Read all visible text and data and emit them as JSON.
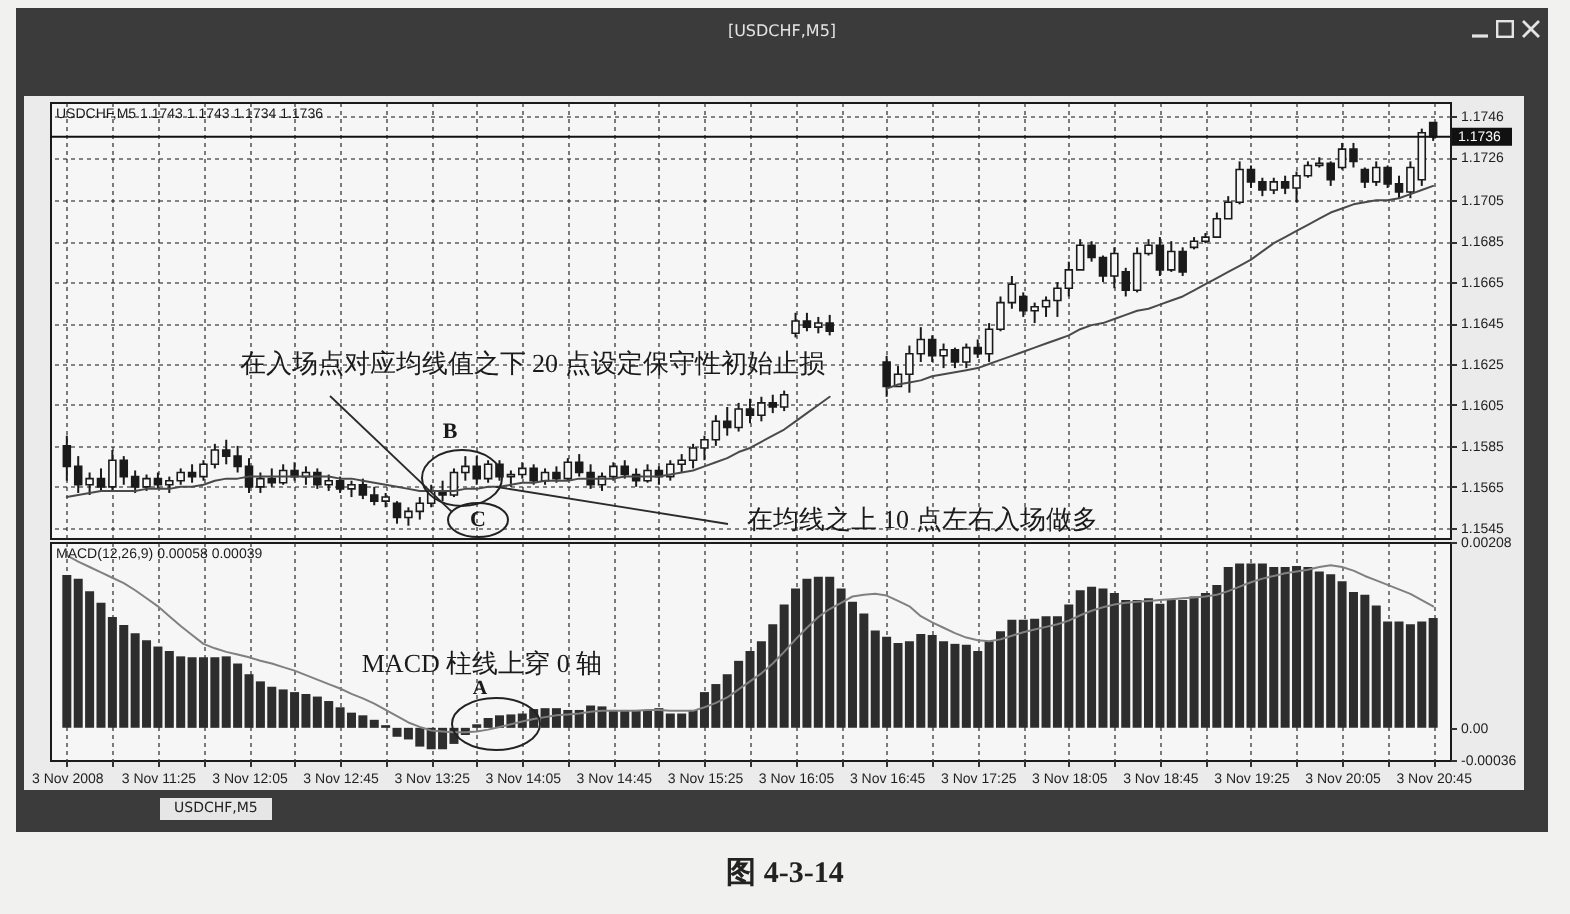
{
  "chart_data": [
    {
      "type": "candlestick",
      "title": "[USDCHF,M5]",
      "subtitle": "USDCHF,M5  1.1743 1.1743 1.1734 1.1736",
      "color": "#1a1a1a",
      "x": [
        "2008-11-03T10:45",
        "2008-11-03T10:50",
        "2008-11-03T10:55",
        "2008-11-03T11:00",
        "2008-11-03T11:05",
        "2008-11-03T11:10",
        "2008-11-03T11:15",
        "2008-11-03T11:20",
        "2008-11-03T11:25",
        "2008-11-03T11:30",
        "2008-11-03T11:35",
        "2008-11-03T11:40",
        "2008-11-03T11:45",
        "2008-11-03T11:50",
        "2008-11-03T11:55",
        "2008-11-03T12:00",
        "2008-11-03T12:05",
        "2008-11-03T12:10",
        "2008-11-03T12:15",
        "2008-11-03T12:20",
        "2008-11-03T12:25",
        "2008-11-03T12:30",
        "2008-11-03T12:35",
        "2008-11-03T12:40",
        "2008-11-03T12:45",
        "2008-11-03T12:50",
        "2008-11-03T12:55",
        "2008-11-03T13:00",
        "2008-11-03T13:05",
        "2008-11-03T13:10",
        "2008-11-03T13:15",
        "2008-11-03T13:20",
        "2008-11-03T13:25",
        "2008-11-03T13:30",
        "2008-11-03T13:35",
        "2008-11-03T13:40",
        "2008-11-03T13:45",
        "2008-11-03T13:50",
        "2008-11-03T13:55",
        "2008-11-03T14:00",
        "2008-11-03T14:05",
        "2008-11-03T14:10",
        "2008-11-03T14:15",
        "2008-11-03T14:20",
        "2008-11-03T14:25",
        "2008-11-03T14:30",
        "2008-11-03T14:35",
        "2008-11-03T14:40",
        "2008-11-03T14:45",
        "2008-11-03T14:50",
        "2008-11-03T14:55",
        "2008-11-03T15:00",
        "2008-11-03T15:05",
        "2008-11-03T15:10",
        "2008-11-03T15:15",
        "2008-11-03T15:20",
        "2008-11-03T15:25",
        "2008-11-03T15:30",
        "2008-11-03T15:35",
        "2008-11-03T15:40",
        "2008-11-03T15:45",
        "2008-11-03T15:50",
        "2008-11-03T15:55",
        "2008-11-03T16:00",
        "2008-11-03T16:05",
        "2008-11-03T16:10",
        "2008-11-03T16:15",
        "2008-11-03T16:20",
        "2008-11-03T16:25",
        "2008-11-03T16:30",
        "2008-11-03T16:35",
        "2008-11-03T16:40",
        "2008-11-03T16:45",
        "2008-11-03T16:50",
        "2008-11-03T16:55",
        "2008-11-03T17:00",
        "2008-11-03T17:05",
        "2008-11-03T17:10",
        "2008-11-03T17:15",
        "2008-11-03T17:20",
        "2008-11-03T17:25",
        "2008-11-03T17:30",
        "2008-11-03T17:35",
        "2008-11-03T17:40",
        "2008-11-03T17:45",
        "2008-11-03T17:50",
        "2008-11-03T17:55",
        "2008-11-03T18:00",
        "2008-11-03T18:05",
        "2008-11-03T18:10",
        "2008-11-03T18:15",
        "2008-11-03T18:20",
        "2008-11-03T18:25",
        "2008-11-03T18:30",
        "2008-11-03T18:35",
        "2008-11-03T18:40",
        "2008-11-03T18:45",
        "2008-11-03T18:50",
        "2008-11-03T18:55",
        "2008-11-03T19:00",
        "2008-11-03T19:05",
        "2008-11-03T19:10",
        "2008-11-03T19:15",
        "2008-11-03T19:20",
        "2008-11-03T19:25",
        "2008-11-03T19:30",
        "2008-11-03T19:35",
        "2008-11-03T19:40",
        "2008-11-03T19:45",
        "2008-11-03T19:50",
        "2008-11-03T19:55",
        "2008-11-03T20:00",
        "2008-11-03T20:05",
        "2008-11-03T20:10",
        "2008-11-03T20:15",
        "2008-11-03T20:20",
        "2008-11-03T20:25",
        "2008-11-03T20:30",
        "2008-11-03T20:35",
        "2008-11-03T20:40",
        "2008-11-03T20:45"
      ],
      "ohlc": [
        [
          1.1585,
          1.159,
          1.1568,
          1.1575
        ],
        [
          1.1575,
          1.158,
          1.1562,
          1.1566
        ],
        [
          1.1566,
          1.1572,
          1.1561,
          1.1569
        ],
        [
          1.1569,
          1.1574,
          1.1563,
          1.1565
        ],
        [
          1.1565,
          1.1583,
          1.1563,
          1.1578
        ],
        [
          1.1578,
          1.158,
          1.1566,
          1.157
        ],
        [
          1.157,
          1.1573,
          1.1562,
          1.1565
        ],
        [
          1.1565,
          1.1571,
          1.1563,
          1.1569
        ],
        [
          1.1569,
          1.1572,
          1.1564,
          1.1566
        ],
        [
          1.1566,
          1.157,
          1.1562,
          1.1568
        ],
        [
          1.1568,
          1.1574,
          1.1566,
          1.1572
        ],
        [
          1.1572,
          1.1576,
          1.1567,
          1.157
        ],
        [
          1.157,
          1.1578,
          1.1568,
          1.1576
        ],
        [
          1.1576,
          1.1586,
          1.1574,
          1.1583
        ],
        [
          1.1583,
          1.1588,
          1.1576,
          1.158
        ],
        [
          1.158,
          1.1585,
          1.1572,
          1.1575
        ],
        [
          1.1575,
          1.1579,
          1.1562,
          1.1565
        ],
        [
          1.1565,
          1.1572,
          1.1562,
          1.1569
        ],
        [
          1.1569,
          1.1574,
          1.1565,
          1.1567
        ],
        [
          1.1567,
          1.1576,
          1.1566,
          1.1573
        ],
        [
          1.1573,
          1.1577,
          1.1568,
          1.157
        ],
        [
          1.157,
          1.1575,
          1.1566,
          1.1572
        ],
        [
          1.1572,
          1.1574,
          1.1564,
          1.1566
        ],
        [
          1.1566,
          1.1571,
          1.1563,
          1.1568
        ],
        [
          1.1568,
          1.157,
          1.1562,
          1.1564
        ],
        [
          1.1564,
          1.1568,
          1.156,
          1.1566
        ],
        [
          1.1566,
          1.1569,
          1.1559,
          1.1561
        ],
        [
          1.1561,
          1.1565,
          1.1556,
          1.1558
        ],
        [
          1.1558,
          1.1562,
          1.1555,
          1.156
        ],
        [
          1.1557,
          1.1558,
          1.1547,
          1.155
        ],
        [
          1.155,
          1.1555,
          1.1546,
          1.1553
        ],
        [
          1.1553,
          1.156,
          1.1549,
          1.1557
        ],
        [
          1.1557,
          1.1566,
          1.1555,
          1.1563
        ],
        [
          1.1563,
          1.1568,
          1.1558,
          1.1561
        ],
        [
          1.1561,
          1.1574,
          1.156,
          1.1572
        ],
        [
          1.1572,
          1.158,
          1.1568,
          1.1575
        ],
        [
          1.1575,
          1.158,
          1.1566,
          1.1569
        ],
        [
          1.1569,
          1.1578,
          1.1567,
          1.1576
        ],
        [
          1.1576,
          1.1578,
          1.1568,
          1.157
        ],
        [
          1.157,
          1.1573,
          1.1565,
          1.1571
        ],
        [
          1.1571,
          1.1577,
          1.1569,
          1.1574
        ],
        [
          1.1574,
          1.1576,
          1.1566,
          1.1568
        ],
        [
          1.1568,
          1.1574,
          1.1566,
          1.1572
        ],
        [
          1.1572,
          1.1575,
          1.1567,
          1.1569
        ],
        [
          1.1569,
          1.1579,
          1.1568,
          1.1577
        ],
        [
          1.1577,
          1.1581,
          1.157,
          1.1572
        ],
        [
          1.1572,
          1.1576,
          1.1564,
          1.1566
        ],
        [
          1.1566,
          1.1572,
          1.1563,
          1.157
        ],
        [
          1.157,
          1.1577,
          1.1568,
          1.1575
        ],
        [
          1.1575,
          1.1578,
          1.1569,
          1.1571
        ],
        [
          1.1571,
          1.1574,
          1.1565,
          1.1568
        ],
        [
          1.1568,
          1.1576,
          1.1567,
          1.1573
        ],
        [
          1.1573,
          1.1575,
          1.1566,
          1.157
        ],
        [
          1.157,
          1.1578,
          1.1568,
          1.1576
        ],
        [
          1.1576,
          1.1581,
          1.1572,
          1.1578
        ],
        [
          1.1578,
          1.1586,
          1.1574,
          1.1584
        ],
        [
          1.1584,
          1.159,
          1.1578,
          1.1588
        ],
        [
          1.1588,
          1.16,
          1.1585,
          1.1597
        ],
        [
          1.1597,
          1.1604,
          1.159,
          1.1594
        ],
        [
          1.1594,
          1.1606,
          1.1592,
          1.1603
        ],
        [
          1.1603,
          1.1608,
          1.1596,
          1.16
        ],
        [
          1.16,
          1.1609,
          1.1597,
          1.1606
        ],
        [
          1.1606,
          1.161,
          1.1601,
          1.1604
        ],
        [
          1.1604,
          1.1612,
          1.1602,
          1.161
        ],
        [
          1.164,
          1.165,
          1.1638,
          1.1646
        ],
        [
          1.1646,
          1.165,
          1.1641,
          1.1643
        ],
        [
          1.1643,
          1.1648,
          1.164,
          1.1645
        ],
        [
          1.1645,
          1.1649,
          1.1639,
          1.1641
        ],
        null,
        null,
        null,
        null,
        [
          1.1626,
          1.1629,
          1.1609,
          1.1614
        ],
        [
          1.1614,
          1.1624,
          1.1614,
          1.162
        ],
        [
          1.162,
          1.1634,
          1.1611,
          1.163
        ],
        [
          1.163,
          1.1643,
          1.1626,
          1.1637
        ],
        [
          1.1637,
          1.1639,
          1.1626,
          1.1629
        ],
        [
          1.1629,
          1.1635,
          1.1623,
          1.1632
        ],
        [
          1.1632,
          1.1633,
          1.1623,
          1.1626
        ],
        [
          1.1626,
          1.1635,
          1.1623,
          1.1633
        ],
        [
          1.1633,
          1.1637,
          1.1628,
          1.163
        ],
        [
          1.163,
          1.1645,
          1.1626,
          1.1642
        ],
        [
          1.1642,
          1.1658,
          1.1641,
          1.1655
        ],
        [
          1.1655,
          1.1668,
          1.1652,
          1.1664
        ],
        [
          1.1658,
          1.166,
          1.1648,
          1.1651
        ],
        [
          1.1651,
          1.1655,
          1.1645,
          1.1653
        ],
        [
          1.1653,
          1.1658,
          1.1648,
          1.1656
        ],
        [
          1.1656,
          1.1665,
          1.1648,
          1.1662
        ],
        [
          1.1662,
          1.1675,
          1.1658,
          1.1671
        ],
        [
          1.1671,
          1.1686,
          1.1671,
          1.1683
        ],
        [
          1.1683,
          1.1685,
          1.1675,
          1.1677
        ],
        [
          1.1677,
          1.1678,
          1.1665,
          1.1668
        ],
        [
          1.1668,
          1.1682,
          1.1662,
          1.1679
        ],
        [
          1.167,
          1.1672,
          1.1658,
          1.1661
        ],
        [
          1.1661,
          1.1682,
          1.166,
          1.1679
        ],
        [
          1.1679,
          1.1686,
          1.1678,
          1.1683
        ],
        [
          1.1683,
          1.1687,
          1.1668,
          1.1671
        ],
        [
          1.1671,
          1.1685,
          1.167,
          1.168
        ],
        [
          1.168,
          1.1682,
          1.1668,
          1.167
        ],
        [
          1.1682,
          1.1687,
          1.1681,
          1.1685
        ],
        [
          1.1685,
          1.1689,
          1.1684,
          1.1687
        ],
        [
          1.1687,
          1.1699,
          1.1687,
          1.1696
        ],
        [
          1.1696,
          1.1707,
          1.1696,
          1.1704
        ],
        [
          1.1704,
          1.1724,
          1.1703,
          1.172
        ],
        [
          1.172,
          1.1722,
          1.1711,
          1.1714
        ],
        [
          1.1714,
          1.1716,
          1.1707,
          1.171
        ],
        [
          1.171,
          1.1716,
          1.1708,
          1.1714
        ],
        [
          1.1714,
          1.1717,
          1.1708,
          1.1711
        ],
        [
          1.1711,
          1.1719,
          1.1704,
          1.1717
        ],
        [
          1.1717,
          1.1724,
          1.1716,
          1.1722
        ],
        [
          1.1722,
          1.1726,
          1.1721,
          1.1723
        ],
        [
          1.1723,
          1.1724,
          1.1712,
          1.1715
        ],
        [
          1.1721,
          1.1733,
          1.172,
          1.173
        ],
        [
          1.173,
          1.1733,
          1.1721,
          1.1724
        ],
        [
          1.172,
          1.1721,
          1.1711,
          1.1714
        ],
        [
          1.1714,
          1.1724,
          1.1712,
          1.1721
        ],
        [
          1.1721,
          1.1722,
          1.1711,
          1.1713
        ],
        [
          1.1713,
          1.1717,
          1.1706,
          1.1709
        ],
        [
          1.1709,
          1.1724,
          1.1706,
          1.1721
        ],
        [
          1.1715,
          1.174,
          1.1712,
          1.1738
        ],
        [
          1.1743,
          1.1743,
          1.1734,
          1.1736
        ]
      ],
      "series": [
        {
          "type": "line",
          "color": "#4a4a4a",
          "values": [
            1.156,
            1.1561,
            1.1562,
            1.1563,
            1.1563,
            1.1563,
            1.1563,
            1.1564,
            1.1564,
            1.1564,
            1.1565,
            1.1565,
            1.1566,
            1.1568,
            1.1569,
            1.1569,
            1.157,
            1.157,
            1.157,
            1.157,
            1.157,
            1.157,
            1.157,
            1.157,
            1.1569,
            1.1569,
            1.1568,
            1.1567,
            1.1566,
            1.1565,
            1.1564,
            1.1563,
            1.1563,
            1.1563,
            1.1563,
            1.1564,
            1.1564,
            1.1565,
            1.1565,
            1.1566,
            1.1567,
            1.1567,
            1.1568,
            1.1568,
            1.1568,
            1.1569,
            1.1569,
            1.1569,
            1.1569,
            1.157,
            1.157,
            1.157,
            1.157,
            1.1571,
            1.1572,
            1.1573,
            1.1575,
            1.1577,
            1.1579,
            1.1582,
            1.1584,
            1.1587,
            1.159,
            1.1593,
            1.1597,
            1.1601,
            1.1605,
            1.1609,
            null,
            null,
            null,
            null,
            1.1613,
            1.1615,
            1.1616,
            1.1617,
            1.1619,
            1.162,
            1.1621,
            1.1622,
            1.1623,
            1.1625,
            1.1627,
            1.1629,
            1.1631,
            1.1633,
            1.1635,
            1.1637,
            1.1639,
            1.1642,
            1.1644,
            1.1645,
            1.1647,
            1.1649,
            1.1651,
            1.1652,
            1.1654,
            1.1656,
            1.1658,
            1.1661,
            1.1664,
            1.1667,
            1.167,
            1.1673,
            1.1676,
            1.168,
            1.1684,
            1.1687,
            1.169,
            1.1693,
            1.1696,
            1.1699,
            1.1701,
            1.1703,
            1.1704,
            1.1705,
            1.1705,
            1.1706,
            1.1708,
            1.171,
            1.1712
          ]
        }
      ],
      "xlim": [
        "2008-11-03T10:42",
        "2008-11-03T20:48"
      ],
      "ylim": [
        1.154,
        1.1753
      ],
      "xticks": [
        "2008-11-03T10:45",
        "2008-11-03T11:05",
        "2008-11-03T11:25",
        "2008-11-03T11:45",
        "2008-11-03T12:05",
        "2008-11-03T12:25",
        "2008-11-03T12:45",
        "2008-11-03T13:05",
        "2008-11-03T13:25",
        "2008-11-03T13:45",
        "2008-11-03T14:05",
        "2008-11-03T14:25",
        "2008-11-03T14:45",
        "2008-11-03T15:05",
        "2008-11-03T15:25",
        "2008-11-03T15:45",
        "2008-11-03T16:05",
        "2008-11-03T16:25",
        "2008-11-03T16:45",
        "2008-11-03T17:05",
        "2008-11-03T17:25",
        "2008-11-03T17:45",
        "2008-11-03T18:05",
        "2008-11-03T18:25",
        "2008-11-03T18:45",
        "2008-11-03T19:05",
        "2008-11-03T19:25",
        "2008-11-03T19:45",
        "2008-11-03T20:05",
        "2008-11-03T20:25",
        "2008-11-03T20:45"
      ],
      "yticks": [
        1.1746,
        1.1726,
        1.1705,
        1.1685,
        1.1665,
        1.1645,
        1.1625,
        1.1605,
        1.1585,
        1.1565,
        1.1545
      ],
      "tick_labels": "y",
      "grid": true,
      "ref_lines": [
        {
          "axis": "y",
          "value": 1.1736,
          "label": "1.1736",
          "color": "#111111"
        }
      ],
      "annotations": [
        "在入场点对应均线值之下 20 点设定保守性初始止损",
        {
          "text": "在均线之上 10 点左右入场做多",
          "x": "2008-11-03T13:55",
          "y": 1.1565
        },
        "B",
        "C"
      ]
    },
    {
      "type": "bar",
      "title": "MACD(12,26,9) 0.00058 0.00039",
      "x": [
        "2008-11-03T10:45",
        "2008-11-03T10:50",
        "2008-11-03T10:55",
        "2008-11-03T11:00",
        "2008-11-03T11:05",
        "2008-11-03T11:10",
        "2008-11-03T11:15",
        "2008-11-03T11:20",
        "2008-11-03T11:25",
        "2008-11-03T11:30",
        "2008-11-03T11:35",
        "2008-11-03T11:40",
        "2008-11-03T11:45",
        "2008-11-03T11:50",
        "2008-11-03T11:55",
        "2008-11-03T12:00",
        "2008-11-03T12:05",
        "2008-11-03T12:10",
        "2008-11-03T12:15",
        "2008-11-03T12:20",
        "2008-11-03T12:25",
        "2008-11-03T12:30",
        "2008-11-03T12:35",
        "2008-11-03T12:40",
        "2008-11-03T12:45",
        "2008-11-03T12:50",
        "2008-11-03T12:55",
        "2008-11-03T13:00",
        "2008-11-03T13:05",
        "2008-11-03T13:10",
        "2008-11-03T13:15",
        "2008-11-03T13:20",
        "2008-11-03T13:25",
        "2008-11-03T13:30",
        "2008-11-03T13:35",
        "2008-11-03T13:40",
        "2008-11-03T13:45",
        "2008-11-03T13:50",
        "2008-11-03T13:55",
        "2008-11-03T14:00",
        "2008-11-03T14:05",
        "2008-11-03T14:10",
        "2008-11-03T14:15",
        "2008-11-03T14:20",
        "2008-11-03T14:25",
        "2008-11-03T14:30",
        "2008-11-03T14:35",
        "2008-11-03T14:40",
        "2008-11-03T14:45",
        "2008-11-03T14:50",
        "2008-11-03T14:55",
        "2008-11-03T15:00",
        "2008-11-03T15:05",
        "2008-11-03T15:10",
        "2008-11-03T15:15",
        "2008-11-03T15:20",
        "2008-11-03T15:25",
        "2008-11-03T15:30",
        "2008-11-03T15:35",
        "2008-11-03T15:40",
        "2008-11-03T15:45",
        "2008-11-03T15:50",
        "2008-11-03T15:55",
        "2008-11-03T16:00",
        "2008-11-03T16:05",
        "2008-11-03T16:10",
        "2008-11-03T16:15",
        "2008-11-03T16:20",
        "2008-11-03T16:25",
        "2008-11-03T16:30",
        "2008-11-03T16:35",
        "2008-11-03T16:40",
        "2008-11-03T16:45",
        "2008-11-03T16:50",
        "2008-11-03T16:55",
        "2008-11-03T17:00",
        "2008-11-03T17:05",
        "2008-11-03T17:10",
        "2008-11-03T17:15",
        "2008-11-03T17:20",
        "2008-11-03T17:25",
        "2008-11-03T17:30",
        "2008-11-03T17:35",
        "2008-11-03T17:40",
        "2008-11-03T17:45",
        "2008-11-03T17:50",
        "2008-11-03T17:55",
        "2008-11-03T18:00",
        "2008-11-03T18:05",
        "2008-11-03T18:10",
        "2008-11-03T18:15",
        "2008-11-03T18:20",
        "2008-11-03T18:25",
        "2008-11-03T18:30",
        "2008-11-03T18:35",
        "2008-11-03T18:40",
        "2008-11-03T18:45",
        "2008-11-03T18:50",
        "2008-11-03T18:55",
        "2008-11-03T19:00",
        "2008-11-03T19:05",
        "2008-11-03T19:10",
        "2008-11-03T19:15",
        "2008-11-03T19:20",
        "2008-11-03T19:25",
        "2008-11-03T19:30",
        "2008-11-03T19:35",
        "2008-11-03T19:40",
        "2008-11-03T19:45",
        "2008-11-03T19:50",
        "2008-11-03T19:55",
        "2008-11-03T20:00",
        "2008-11-03T20:05",
        "2008-11-03T20:10",
        "2008-11-03T20:15",
        "2008-11-03T20:20",
        "2008-11-03T20:25",
        "2008-11-03T20:30",
        "2008-11-03T20:35",
        "2008-11-03T20:40",
        "2008-11-03T20:45"
      ],
      "series": [
        {
          "color": "#2d2d2d",
          "values": [
            0.00171,
            0.00167,
            0.00153,
            0.0014,
            0.00124,
            0.00115,
            0.00106,
            0.00098,
            0.00091,
            0.00086,
            0.0008,
            0.00079,
            0.00079,
            0.00079,
            0.0008,
            0.00072,
            0.0006,
            0.00052,
            0.00046,
            0.00043,
            0.0004,
            0.00038,
            0.00035,
            0.0003,
            0.00023,
            0.00017,
            0.00014,
            9e-05,
            3e-05,
            -0.0001,
            -0.00013,
            -0.00021,
            -0.00024,
            -0.00024,
            -0.00018,
            -8e-05,
            4e-05,
            0.00011,
            0.00014,
            0.00015,
            0.00016,
            0.00021,
            0.00022,
            0.00022,
            0.0002,
            0.0002,
            0.00025,
            0.00024,
            0.0002,
            0.0002,
            0.0002,
            0.0002,
            0.00022,
            0.00016,
            0.00016,
            0.0002,
            0.0004,
            0.00049,
            0.0006,
            0.00075,
            0.00086,
            0.00097,
            0.00116,
            0.00138,
            0.00156,
            0.00167,
            0.00169,
            0.00169,
            0.00156,
            0.00141,
            0.00128,
            0.00109,
            0.00102,
            0.00095,
            0.00097,
            0.00105,
            0.00104,
            0.00097,
            0.00094,
            0.00093,
            0.00086,
            0.00097,
            0.00108,
            0.00121,
            0.00121,
            0.00122,
            0.00125,
            0.00125,
            0.00138,
            0.00154,
            0.00158,
            0.00156,
            0.00151,
            0.00143,
            0.00143,
            0.00145,
            0.00139,
            0.00143,
            0.00143,
            0.00147,
            0.00151,
            0.0016,
            0.0018,
            0.00184,
            0.00184,
            0.00184,
            0.0018,
            0.0018,
            0.00181,
            0.0018,
            0.00175,
            0.00172,
            0.00164,
            0.00152,
            0.00149,
            0.00137,
            0.00119,
            0.00119,
            0.00116,
            0.00119,
            0.00123
          ]
        },
        {
          "type": "line",
          "color": "#808080",
          "values": [
            0.00193,
            0.00186,
            0.0018,
            0.00174,
            0.00168,
            0.00162,
            0.00154,
            0.00145,
            0.00136,
            0.00125,
            0.00114,
            0.00104,
            0.00094,
            0.00089,
            0.00085,
            0.00082,
            0.00079,
            0.00075,
            0.00072,
            0.00068,
            0.00064,
            0.00059,
            0.00054,
            0.00049,
            0.00044,
            0.00038,
            0.00033,
            0.00027,
            0.0002,
            0.00013,
            6e-05,
            1e-05,
            -3e-05,
            -4e-05,
            -5e-05,
            -5e-05,
            -4e-05,
            -2e-05,
            1e-05,
            4e-05,
            7e-05,
            0.0001,
            0.00012,
            0.00014,
            0.00015,
            0.00016,
            0.00018,
            0.00019,
            0.00019,
            0.00019,
            0.00019,
            0.0002,
            0.0002,
            0.00019,
            0.00019,
            0.00019,
            0.00023,
            0.00028,
            0.00034,
            0.00043,
            0.00052,
            0.00061,
            0.00072,
            0.00085,
            0.00099,
            0.00112,
            0.00124,
            0.00133,
            0.0014,
            0.00147,
            0.00149,
            0.0015,
            0.00148,
            0.00142,
            0.00136,
            0.00125,
            0.00118,
            0.00112,
            0.00106,
            0.00101,
            0.00098,
            0.00097,
            0.00099,
            0.00103,
            0.00107,
            0.0011,
            0.00113,
            0.00116,
            0.0012,
            0.00126,
            0.00131,
            0.00135,
            0.00138,
            0.0014,
            0.00141,
            0.00142,
            0.00143,
            0.00144,
            0.00145,
            0.00146,
            0.00147,
            0.00149,
            0.00153,
            0.00158,
            0.00163,
            0.00167,
            0.0017,
            0.00173,
            0.00175,
            0.00177,
            0.0018,
            0.00182,
            0.0018,
            0.00176,
            0.0017,
            0.00165,
            0.0016,
            0.00155,
            0.0015,
            0.00143,
            0.00136
          ]
        }
      ],
      "xlim": [
        "2008-11-03T10:42",
        "2008-11-03T20:48"
      ],
      "ylim": [
        -0.00036,
        0.00208
      ],
      "xticks": [
        {
          "value": "2008-11-03T10:45",
          "label": "3 Nov 2008"
        },
        {
          "value": "2008-11-03T11:05",
          "label": null
        },
        {
          "value": "2008-11-03T11:25",
          "label": "3 Nov 11:25"
        },
        {
          "value": "2008-11-03T11:45",
          "label": null
        },
        {
          "value": "2008-11-03T12:05",
          "label": "3 Nov 12:05"
        },
        {
          "value": "2008-11-03T12:25",
          "label": null
        },
        {
          "value": "2008-11-03T12:45",
          "label": "3 Nov 12:45"
        },
        {
          "value": "2008-11-03T13:05",
          "label": null
        },
        {
          "value": "2008-11-03T13:25",
          "label": "3 Nov 13:25"
        },
        {
          "value": "2008-11-03T13:45",
          "label": null
        },
        {
          "value": "2008-11-03T14:05",
          "label": "3 Nov 14:05"
        },
        {
          "value": "2008-11-03T14:25",
          "label": null
        },
        {
          "value": "2008-11-03T14:45",
          "label": "3 Nov 14:45"
        },
        {
          "value": "2008-11-03T15:05",
          "label": null
        },
        {
          "value": "2008-11-03T15:25",
          "label": "3 Nov 15:25"
        },
        {
          "value": "2008-11-03T15:45",
          "label": null
        },
        {
          "value": "2008-11-03T16:05",
          "label": "3 Nov 16:05"
        },
        {
          "value": "2008-11-03T16:25",
          "label": null
        },
        {
          "value": "2008-11-03T16:45",
          "label": "3 Nov 16:45"
        },
        {
          "value": "2008-11-03T17:05",
          "label": null
        },
        {
          "value": "2008-11-03T17:25",
          "label": "3 Nov 17:25"
        },
        {
          "value": "2008-11-03T17:45",
          "label": null
        },
        {
          "value": "2008-11-03T18:05",
          "label": "3 Nov 18:05"
        },
        {
          "value": "2008-11-03T18:25",
          "label": null
        },
        {
          "value": "2008-11-03T18:45",
          "label": "3 Nov 18:45"
        },
        {
          "value": "2008-11-03T19:05",
          "label": null
        },
        {
          "value": "2008-11-03T19:25",
          "label": "3 Nov 19:25"
        },
        {
          "value": "2008-11-03T19:45",
          "label": null
        },
        {
          "value": "2008-11-03T20:05",
          "label": "3 Nov 20:05"
        },
        {
          "value": "2008-11-03T20:25",
          "label": null
        },
        {
          "value": "2008-11-03T20:45",
          "label": "3 Nov 20:45"
        }
      ],
      "yticks": [
        0.00208,
        {
          "value": 0,
          "label": "0.00"
        },
        -0.00036
      ],
      "grid": "x",
      "annotations": [
        "MACD 柱线上穿 0 轴",
        "A",
        "USDCHF,M5",
        "图 4-3-14"
      ]
    }
  ]
}
